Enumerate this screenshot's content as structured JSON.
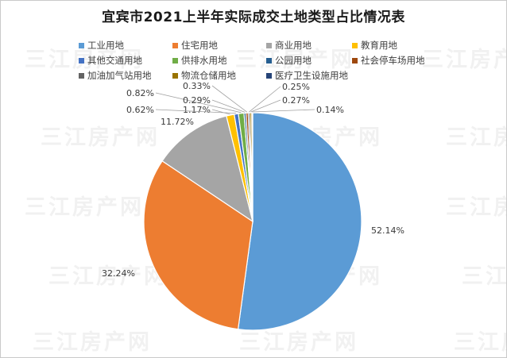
{
  "watermark": "三江房产网",
  "chart_data": {
    "type": "pie",
    "title": "宜宾市2021上半年实际成交土地类型占比情况表",
    "legend_position": "top",
    "slices": [
      {
        "name": "工业用地",
        "value": 52.14,
        "label": "52.14%",
        "color": "#5b9bd5"
      },
      {
        "name": "住宅用地",
        "value": 32.24,
        "label": "32.24%",
        "color": "#ed7d31"
      },
      {
        "name": "商业用地",
        "value": 11.72,
        "label": "11.72%",
        "color": "#a5a5a5"
      },
      {
        "name": "教育用地",
        "value": 1.17,
        "label": "1.17%",
        "color": "#ffc000"
      },
      {
        "name": "其他交通用地",
        "value": 0.62,
        "label": "0.62%",
        "color": "#4472c4"
      },
      {
        "name": "供排水用地",
        "value": 0.82,
        "label": "0.82%",
        "color": "#70ad47"
      },
      {
        "name": "公园用地",
        "value": 0.29,
        "label": "0.29%",
        "color": "#255e91"
      },
      {
        "name": "社会停车场用地",
        "value": 0.33,
        "label": "0.33%",
        "color": "#9e480e"
      },
      {
        "name": "加油加气站用地",
        "value": 0.25,
        "label": "0.25%",
        "color": "#636363"
      },
      {
        "name": "物流仓储用地",
        "value": 0.27,
        "label": "0.27%",
        "color": "#997300"
      },
      {
        "name": "医疗卫生设施用地",
        "value": 0.14,
        "label": "0.14%",
        "color": "#264478"
      }
    ]
  }
}
